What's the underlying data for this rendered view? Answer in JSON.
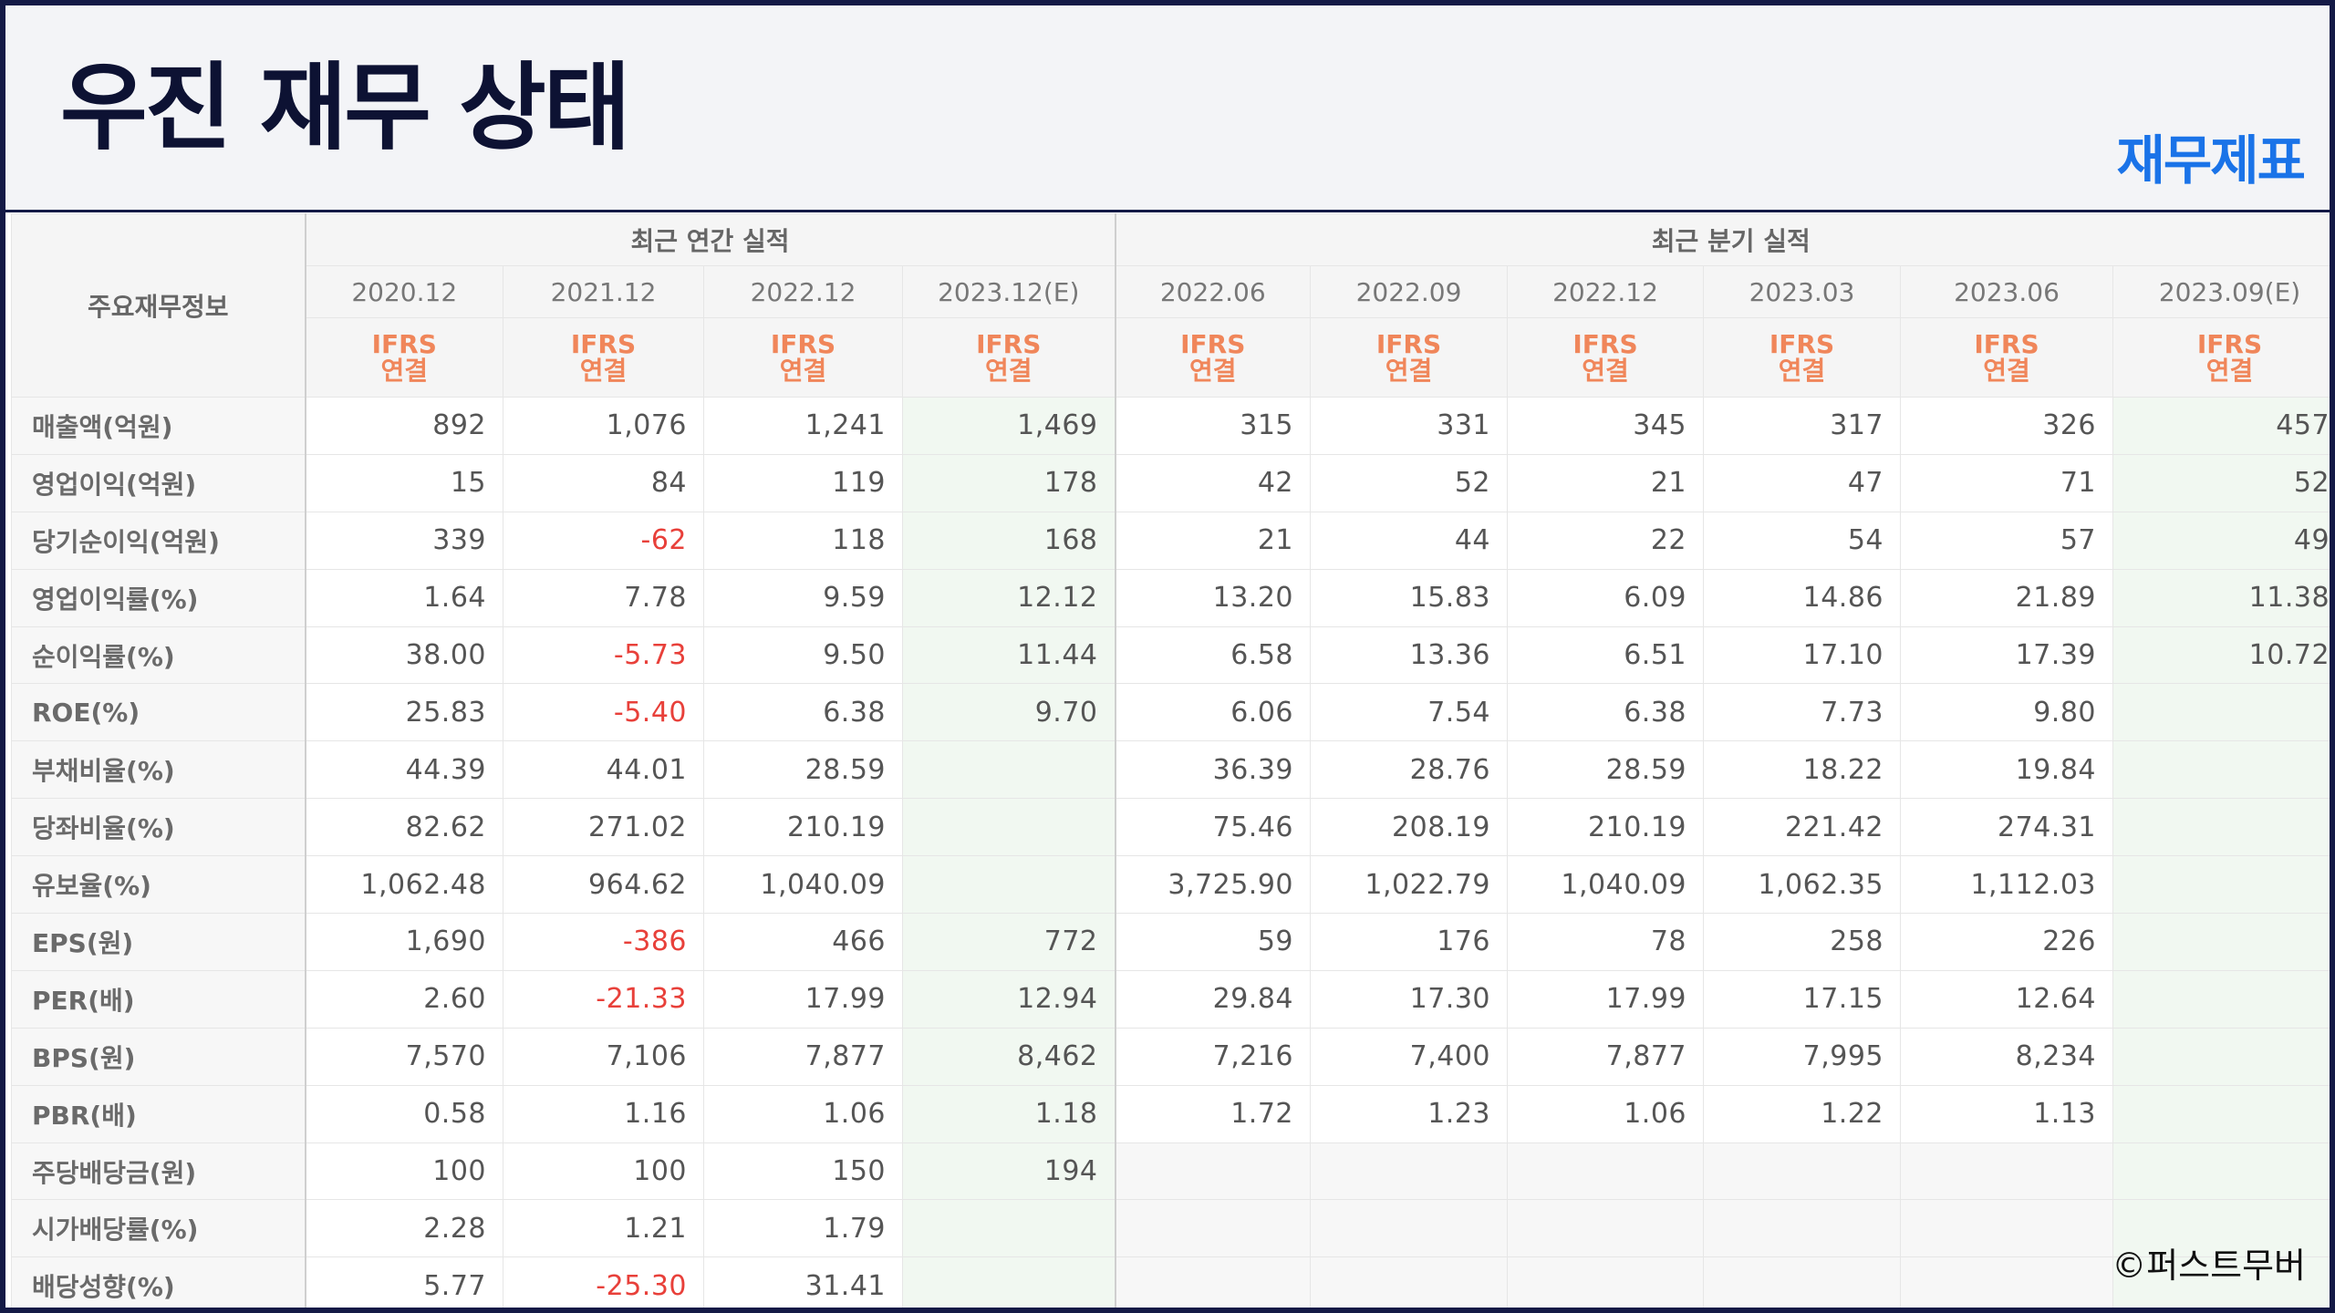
{
  "header": {
    "title": "우진 재무 상태",
    "category": "재무제표"
  },
  "table": {
    "corner_label": "주요재무정보",
    "annual_group_label": "최근 연간 실적",
    "quarter_group_label": "최근 분기 실적",
    "ifrs_line1": "IFRS",
    "ifrs_line2": "연결",
    "columns": [
      "2020.12",
      "2021.12",
      "2022.12",
      "2023.12(E)",
      "2022.06",
      "2022.09",
      "2022.12",
      "2023.03",
      "2023.06",
      "2023.09(E)"
    ],
    "rows": [
      {
        "label": "매출액(억원)",
        "values": [
          "892",
          "1,076",
          "1,241",
          "1,469",
          "315",
          "331",
          "345",
          "317",
          "326",
          "457"
        ]
      },
      {
        "label": "영업이익(억원)",
        "values": [
          "15",
          "84",
          "119",
          "178",
          "42",
          "52",
          "21",
          "47",
          "71",
          "52"
        ]
      },
      {
        "label": "당기순이익(억원)",
        "values": [
          "339",
          "-62",
          "118",
          "168",
          "21",
          "44",
          "22",
          "54",
          "57",
          "49"
        ]
      },
      {
        "label": "영업이익률(%)",
        "values": [
          "1.64",
          "7.78",
          "9.59",
          "12.12",
          "13.20",
          "15.83",
          "6.09",
          "14.86",
          "21.89",
          "11.38"
        ]
      },
      {
        "label": "순이익률(%)",
        "values": [
          "38.00",
          "-5.73",
          "9.50",
          "11.44",
          "6.58",
          "13.36",
          "6.51",
          "17.10",
          "17.39",
          "10.72"
        ]
      },
      {
        "label": "ROE(%)",
        "values": [
          "25.83",
          "-5.40",
          "6.38",
          "9.70",
          "6.06",
          "7.54",
          "6.38",
          "7.73",
          "9.80",
          ""
        ]
      },
      {
        "label": "부채비율(%)",
        "values": [
          "44.39",
          "44.01",
          "28.59",
          "",
          "36.39",
          "28.76",
          "28.59",
          "18.22",
          "19.84",
          ""
        ]
      },
      {
        "label": "당좌비율(%)",
        "values": [
          "82.62",
          "271.02",
          "210.19",
          "",
          "75.46",
          "208.19",
          "210.19",
          "221.42",
          "274.31",
          ""
        ]
      },
      {
        "label": "유보율(%)",
        "values": [
          "1,062.48",
          "964.62",
          "1,040.09",
          "",
          "3,725.90",
          "1,022.79",
          "1,040.09",
          "1,062.35",
          "1,112.03",
          ""
        ]
      },
      {
        "label": "EPS(원)",
        "values": [
          "1,690",
          "-386",
          "466",
          "772",
          "59",
          "176",
          "78",
          "258",
          "226",
          ""
        ]
      },
      {
        "label": "PER(배)",
        "values": [
          "2.60",
          "-21.33",
          "17.99",
          "12.94",
          "29.84",
          "17.30",
          "17.99",
          "17.15",
          "12.64",
          ""
        ]
      },
      {
        "label": "BPS(원)",
        "values": [
          "7,570",
          "7,106",
          "7,877",
          "8,462",
          "7,216",
          "7,400",
          "7,877",
          "7,995",
          "8,234",
          ""
        ]
      },
      {
        "label": "PBR(배)",
        "values": [
          "0.58",
          "1.16",
          "1.06",
          "1.18",
          "1.72",
          "1.23",
          "1.06",
          "1.22",
          "1.13",
          ""
        ]
      },
      {
        "label": "주당배당금(원)",
        "values": [
          "100",
          "100",
          "150",
          "194",
          "",
          "",
          "",
          "",
          "",
          ""
        ]
      },
      {
        "label": "시가배당률(%)",
        "values": [
          "2.28",
          "1.21",
          "1.79",
          "",
          "",
          "",
          "",
          "",
          "",
          ""
        ]
      },
      {
        "label": "배당성향(%)",
        "values": [
          "5.77",
          "-25.30",
          "31.41",
          "",
          "",
          "",
          "",
          "",
          "",
          ""
        ]
      }
    ]
  },
  "watermark": "©퍼스트무버",
  "colors": {
    "frame": "#141a46",
    "title": "#0d1233",
    "category": "#1a73e8",
    "ifrs": "#f0865a",
    "negative": "#e8403a",
    "estimate_bg": "#f1f8f1"
  }
}
